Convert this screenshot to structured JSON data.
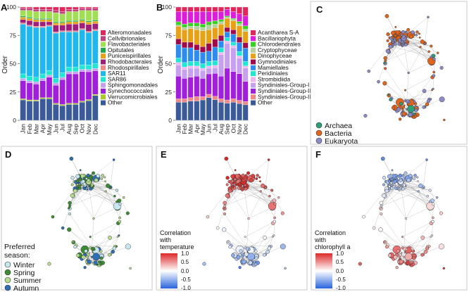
{
  "panel_letters": {
    "a": "A",
    "b": "B",
    "c": "C",
    "d": "D",
    "e": "E",
    "f": "F"
  },
  "colors": {
    "prok": [
      "#e0265a",
      "#c0417b",
      "#9fe052",
      "#1eaa4b",
      "#e8a014",
      "#a01e78",
      "#f08888",
      "#1eb7f0",
      "#1ee8d2",
      "#c8a0f0",
      "#a01edc",
      "#aac828",
      "#3a5a9a"
    ],
    "euk": [
      "#e0265a",
      "#dc1edc",
      "#37d21e",
      "#b4d2a0",
      "#e8a014",
      "#a00a4b",
      "#2e8bf0",
      "#1ee8d2",
      "#f0b4f0",
      "#c8a0f0",
      "#a01edc",
      "#f08888",
      "#3a5a9a"
    ],
    "domain": {
      "archaea": "#2e9e78",
      "bacteria": "#e0641e",
      "eukaryota": "#8c8cc8"
    },
    "season": {
      "winter": "#c8e6f0",
      "spring": "#3c8c32",
      "summer": "#b4dc8c",
      "autumn": "#2e6eb4"
    },
    "corr": {
      "neg": "#2864dc",
      "zero": "#ffffff",
      "pos": "#dc2828"
    }
  },
  "chart_data": [
    {
      "panel": "A",
      "type": "bar",
      "stacked": true,
      "title": "",
      "xlabel": "",
      "ylabel": "Order",
      "ylim": [
        0,
        100
      ],
      "yticks": [
        "0",
        "25",
        "50",
        "75",
        "100"
      ],
      "categories": [
        "Jan",
        "Feb",
        "Mar",
        "Apr",
        "May",
        "Jun",
        "Jul",
        "Aug",
        "Sep",
        "Oct",
        "Nov",
        "Dec"
      ],
      "series": [
        {
          "name": "Other",
          "values": [
            18,
            17,
            17,
            19,
            19,
            14,
            13,
            14,
            14,
            16,
            17,
            21
          ]
        },
        {
          "name": "Verrucomicrobiales",
          "values": [
            1,
            1,
            1,
            1,
            1,
            1,
            1,
            1,
            1,
            1,
            1,
            1
          ]
        },
        {
          "name": "Synechococcales",
          "values": [
            16,
            15,
            14,
            15,
            18,
            16,
            22,
            26,
            26,
            26,
            24,
            20
          ]
        },
        {
          "name": "Sphingomonadales",
          "values": [
            2,
            2,
            2,
            2,
            2,
            2,
            2,
            2,
            2,
            2,
            2,
            2
          ]
        },
        {
          "name": "SAR86",
          "values": [
            4,
            4,
            4,
            4,
            4,
            4,
            4,
            4,
            4,
            4,
            4,
            4
          ]
        },
        {
          "name": "SAR11",
          "values": [
            44,
            44,
            44,
            41,
            39,
            40,
            36,
            31,
            31,
            31,
            28,
            28
          ]
        },
        {
          "name": "Rhodospirillales",
          "values": [
            1,
            1,
            1,
            1,
            1,
            1,
            1,
            1,
            1,
            1,
            1,
            1
          ]
        },
        {
          "name": "Rhodobacterales",
          "values": [
            3,
            4,
            4,
            4,
            3,
            6,
            5,
            6,
            6,
            5,
            6,
            5
          ]
        },
        {
          "name": "Puniceispirillales",
          "values": [
            2,
            2,
            2,
            2,
            2,
            2,
            2,
            2,
            2,
            2,
            2,
            2
          ]
        },
        {
          "name": "Opitutales",
          "values": [
            1,
            1,
            1,
            1,
            1,
            1,
            1,
            1,
            1,
            1,
            1,
            1
          ]
        },
        {
          "name": "Flavobacteriales",
          "values": [
            5,
            6,
            6,
            6,
            6,
            8,
            7,
            8,
            8,
            8,
            9,
            8
          ]
        },
        {
          "name": "Cellvibrionales",
          "values": [
            2,
            2,
            2,
            2,
            2,
            2,
            2,
            2,
            2,
            2,
            2,
            2
          ]
        },
        {
          "name": "Alteromonadales",
          "values": [
            1,
            1,
            2,
            2,
            2,
            3,
            4,
            2,
            2,
            1,
            1,
            1
          ]
        }
      ],
      "legend": [
        "Alteromonadales",
        "Cellvibrionales",
        "Flavobacteriales",
        "Opitutales",
        "Puniceispirillales",
        "Rhodobacterales",
        "Rhodospirillales",
        "SAR11",
        "SAR86",
        "Sphingomonadales",
        "Synechococcales",
        "Verrucomicrobiales",
        "Other"
      ]
    },
    {
      "panel": "B",
      "type": "bar",
      "stacked": true,
      "title": "",
      "xlabel": "",
      "ylabel": "Order",
      "ylim": [
        0,
        100
      ],
      "yticks": [
        "0",
        "25",
        "50",
        "75",
        "100"
      ],
      "categories": [
        "Jan",
        "Feb",
        "Mar",
        "Apr",
        "May",
        "Jun",
        "Jul",
        "Aug",
        "Sep",
        "Oct",
        "Nov",
        "Dec"
      ],
      "series": [
        {
          "name": "Other",
          "values": [
            16,
            16,
            17,
            17,
            18,
            20,
            18,
            16,
            15,
            16,
            15,
            14
          ]
        },
        {
          "name": "Syndiniales-Group-III",
          "values": [
            3,
            3,
            3,
            4,
            3,
            3,
            3,
            3,
            3,
            3,
            3,
            3
          ]
        },
        {
          "name": "Syndiniales-Group-II",
          "values": [
            20,
            18,
            18,
            18,
            16,
            18,
            20,
            20,
            28,
            24,
            24,
            18
          ]
        },
        {
          "name": "Syndiniales-Group-I",
          "values": [
            10,
            8,
            8,
            7,
            7,
            5,
            5,
            19,
            22,
            21,
            14,
            12
          ]
        },
        {
          "name": "Strombidiida",
          "values": [
            2,
            2,
            2,
            2,
            2,
            2,
            2,
            2,
            2,
            2,
            2,
            2
          ]
        },
        {
          "name": "Peridiniales",
          "values": [
            4,
            4,
            4,
            4,
            4,
            4,
            4,
            4,
            3,
            3,
            4,
            4
          ]
        },
        {
          "name": "Mamiellales",
          "values": [
            12,
            13,
            12,
            10,
            10,
            9,
            12,
            6,
            5,
            7,
            8,
            12
          ]
        },
        {
          "name": "Gymnodiniales",
          "values": [
            5,
            5,
            5,
            5,
            5,
            7,
            7,
            5,
            4,
            4,
            5,
            5
          ]
        },
        {
          "name": "Dinophyceae",
          "values": [
            11,
            11,
            12,
            13,
            14,
            12,
            10,
            10,
            8,
            8,
            10,
            10
          ]
        },
        {
          "name": "Cryptophyceae",
          "values": [
            1,
            2,
            2,
            3,
            3,
            4,
            3,
            2,
            1,
            1,
            2,
            2
          ]
        },
        {
          "name": "Chlorodendrales",
          "values": [
            3,
            3,
            3,
            3,
            3,
            3,
            3,
            2,
            1,
            1,
            2,
            3
          ]
        },
        {
          "name": "Bacillariophyta",
          "values": [
            9,
            11,
            10,
            10,
            11,
            9,
            8,
            7,
            6,
            6,
            7,
            9
          ]
        },
        {
          "name": "Acantharea S-A",
          "values": [
            4,
            4,
            4,
            4,
            4,
            4,
            4,
            4,
            2,
            4,
            6,
            8
          ]
        }
      ],
      "legend": [
        "Acantharea S-A",
        "Bacillariophyta",
        "Chlorodendrales",
        "Cryptophyceae",
        "Dinophyceae",
        "Gymnodiniales",
        "Mamiellales",
        "Peridiniales",
        "Strombidiida",
        "Syndiniales-Group-I",
        "Syndiniales-Group-II",
        "Syndiniales-Group-III",
        "Other"
      ]
    }
  ],
  "panel_c": {
    "legend": [
      {
        "label": "Archaea",
        "key": "archaea"
      },
      {
        "label": "Bacteria",
        "key": "bacteria"
      },
      {
        "label": "Eukaryota",
        "key": "eukaryota"
      }
    ]
  },
  "panel_d": {
    "legend_title_1": "Preferred",
    "legend_title_2": "season:",
    "legend": [
      {
        "label": "Winter",
        "key": "winter"
      },
      {
        "label": "Spring",
        "key": "spring"
      },
      {
        "label": "Summer",
        "key": "summer"
      },
      {
        "label": "Autumn",
        "key": "autumn"
      }
    ]
  },
  "panel_e": {
    "title_1": "Correlation",
    "title_2": "with",
    "title_3": "temperature",
    "ticks": [
      "1.0",
      "0.5",
      "0.0",
      "-0.5",
      "-1.0"
    ]
  },
  "panel_f": {
    "title_1": "Correlation",
    "title_2": "with",
    "title_3": "chlorophyll a",
    "ticks": [
      "1.0",
      "0.5",
      "0.0",
      "-0.5",
      "-1.0"
    ]
  }
}
